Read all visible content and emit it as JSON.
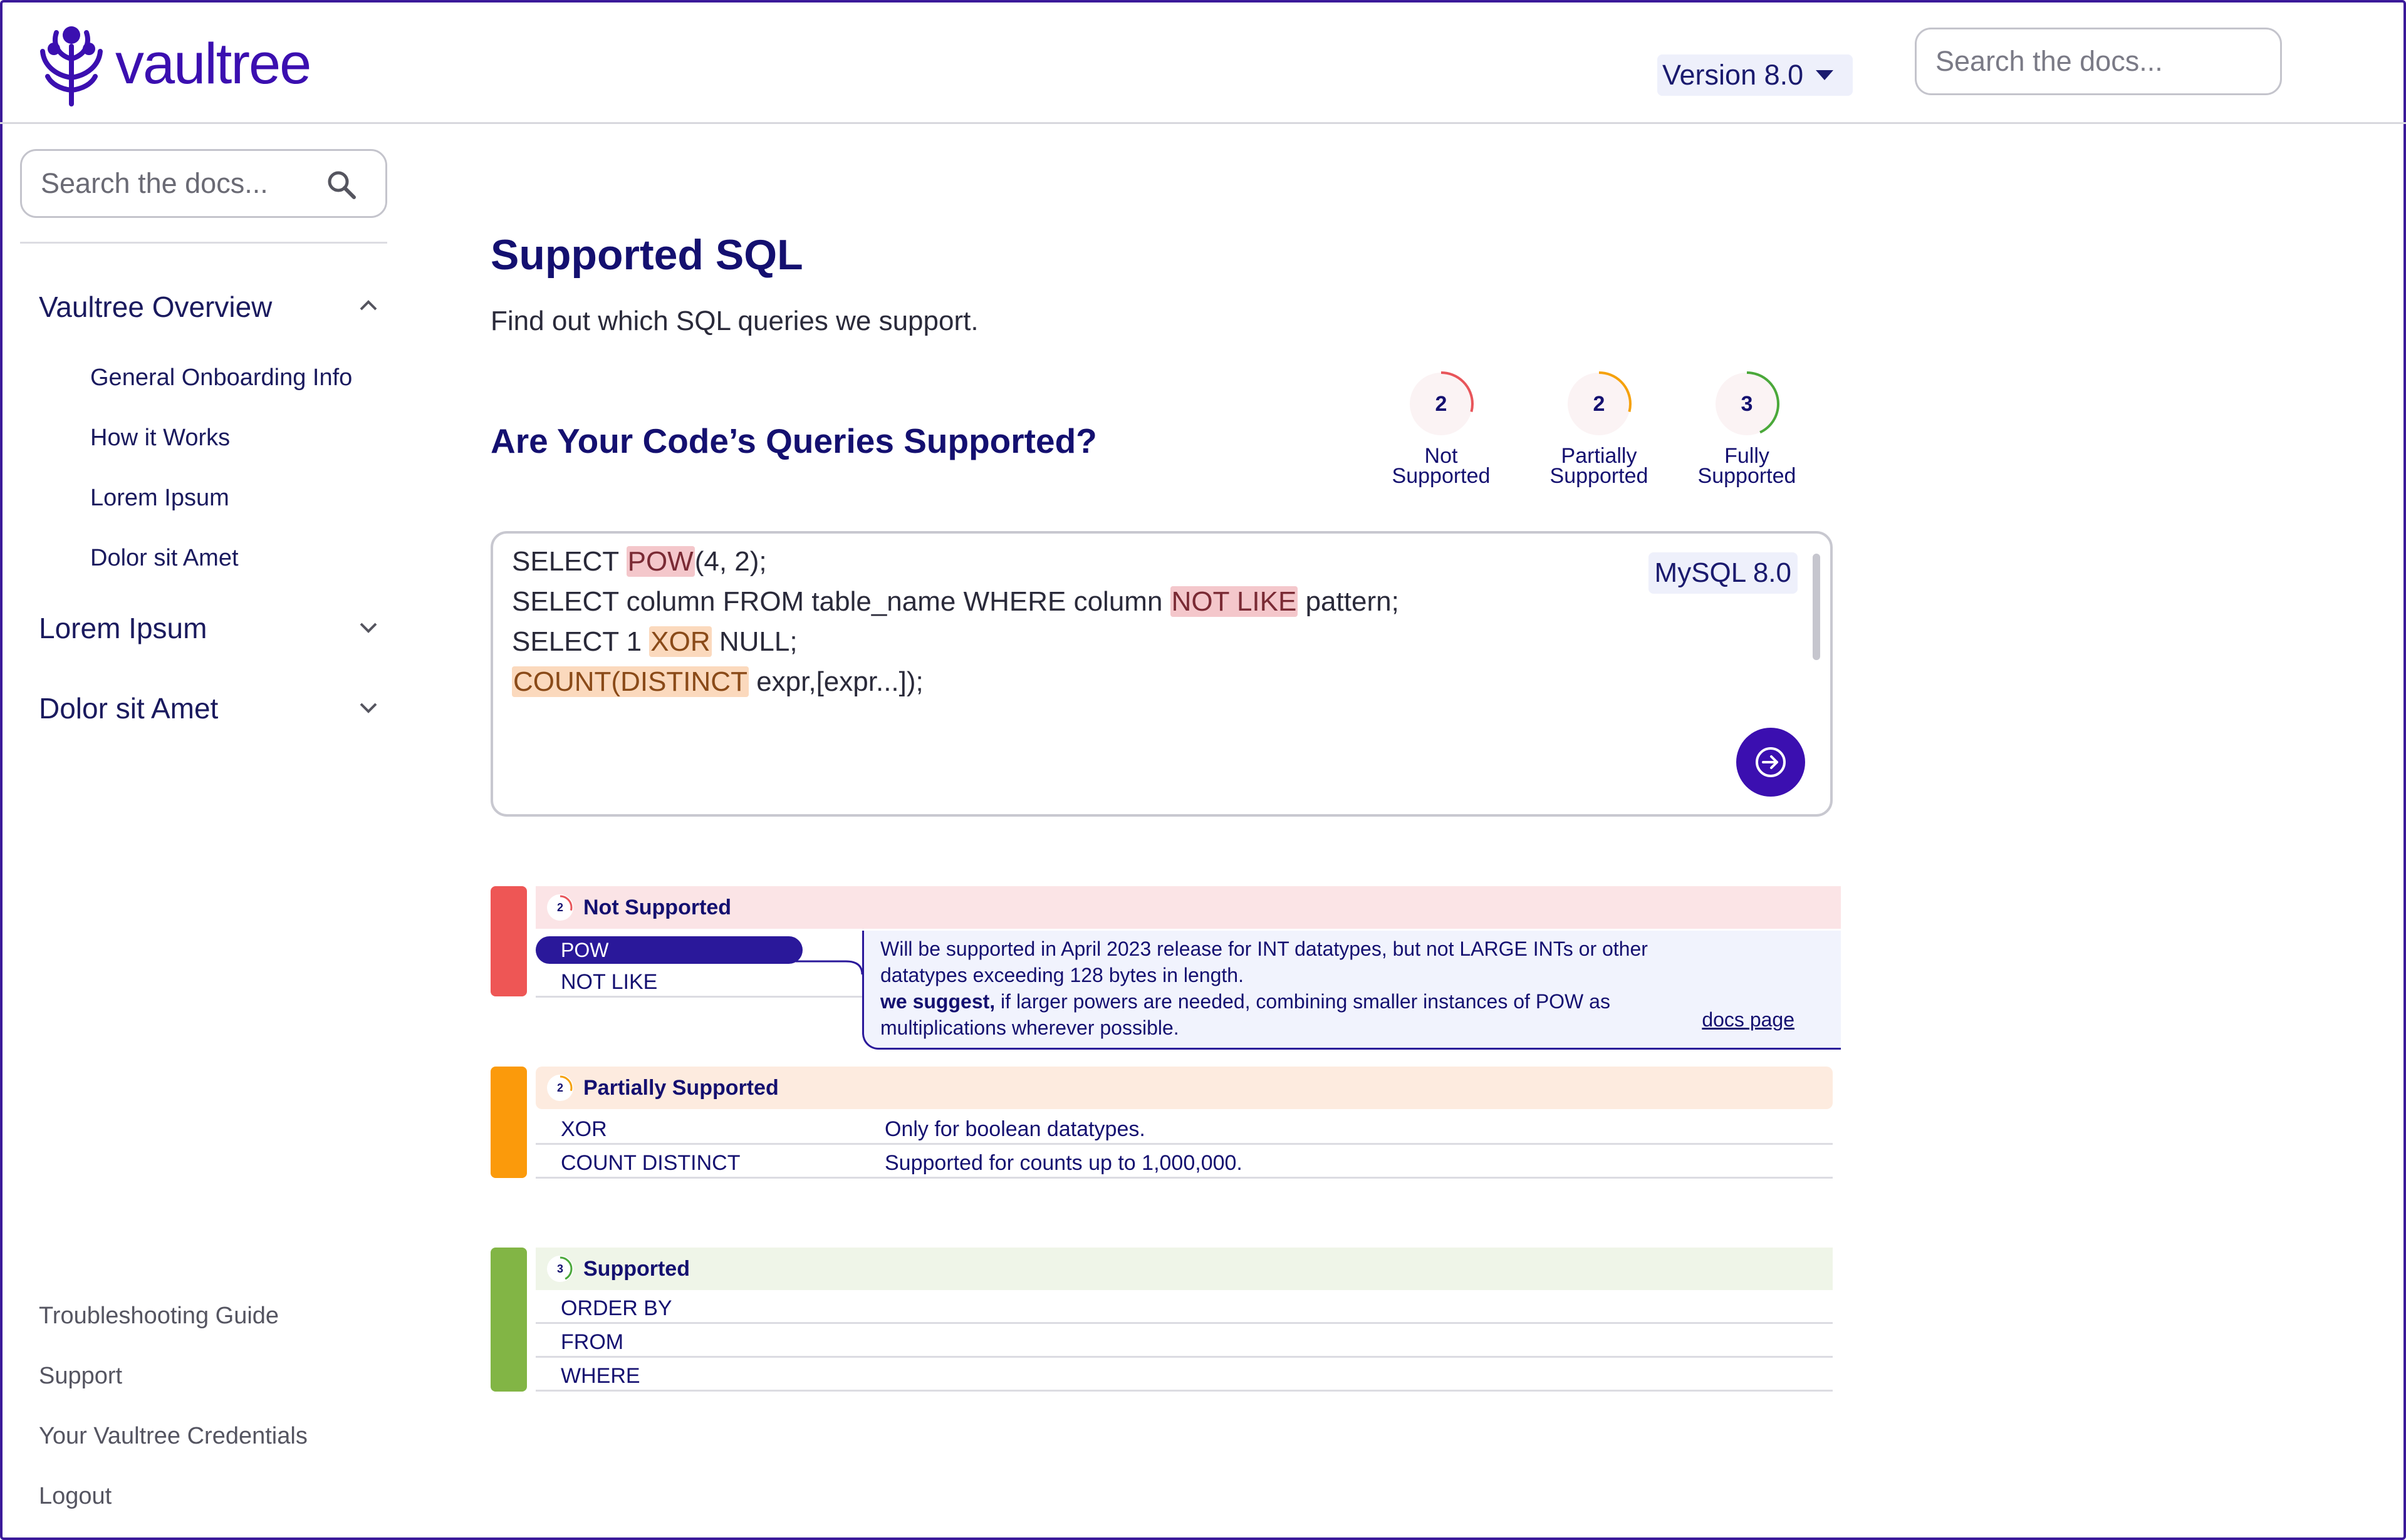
{
  "header": {
    "brand": "vaultree",
    "version_label": "Version 8.0",
    "search_placeholder": "Search the docs..."
  },
  "sidebar": {
    "search_placeholder": "Search the docs...",
    "sections": [
      {
        "label": "Vaultree Overview",
        "expanded": true,
        "items": [
          "General Onboarding Info",
          "How it Works",
          "Lorem Ipsum",
          "Dolor sit Amet"
        ]
      },
      {
        "label": "Lorem Ipsum",
        "expanded": false
      },
      {
        "label": "Dolor sit Amet",
        "expanded": false
      }
    ],
    "footer_links": [
      "Troubleshooting Guide",
      "Support",
      "Your Vaultree Credentials",
      "Logout"
    ]
  },
  "main": {
    "title": "Supported SQL",
    "subtitle": "Find out which SQL queries we support.",
    "query_heading": "Are Your Code’s Queries Supported?",
    "stats": [
      {
        "count": "2",
        "line1": "Not",
        "line2": "Supported",
        "color": "#e8555a",
        "fraction": 0.29
      },
      {
        "count": "2",
        "line1": "Partially",
        "line2": "Supported",
        "color": "#f5a10c",
        "fraction": 0.29
      },
      {
        "count": "3",
        "line1": "Fully",
        "line2": "Supported",
        "color": "#4aa83a",
        "fraction": 0.43
      }
    ],
    "editor": {
      "dialect": "MySQL 8.0",
      "lines": [
        {
          "pre": "SELECT ",
          "hl": "POW",
          "hl_type": "red",
          "post": "(4, 2);"
        },
        {
          "pre": "SELECT column FROM table_name WHERE column ",
          "hl": "NOT LIKE",
          "hl_type": "red",
          "post": " pattern;"
        },
        {
          "pre": "SELECT 1 ",
          "hl": "XOR",
          "hl_type": "orange",
          "post": " NULL;"
        },
        {
          "pre": "",
          "hl": "COUNT(DISTINCT",
          "hl_type": "orange",
          "post": " expr,[expr...]);"
        }
      ]
    },
    "results": {
      "not_supported": {
        "count": "2",
        "title": "Not Supported",
        "color": "#ee5655",
        "items": [
          "POW",
          "NOT LIKE"
        ],
        "tooltip_text": "Will be supported in April 2023 release for INT datatypes, but not LARGE INTs or other datatypes exceeding 128 bytes in length.",
        "tooltip_suggest_bold": "we suggest,",
        "tooltip_suggest_rest": " if larger powers are needed, combining smaller instances of POW as multiplications wherever possible.",
        "docs_link": "docs page"
      },
      "partially_supported": {
        "count": "2",
        "title": "Partially Supported",
        "color": "#fb9a0b",
        "rows": [
          {
            "name": "XOR",
            "note": "Only for boolean datatypes."
          },
          {
            "name": "COUNT DISTINCT",
            "note": "Supported for counts up to 1,000,000."
          }
        ]
      },
      "supported": {
        "count": "3",
        "title": "Supported",
        "color": "#82b545",
        "items": [
          "ORDER BY",
          "FROM",
          "WHERE"
        ]
      }
    }
  }
}
